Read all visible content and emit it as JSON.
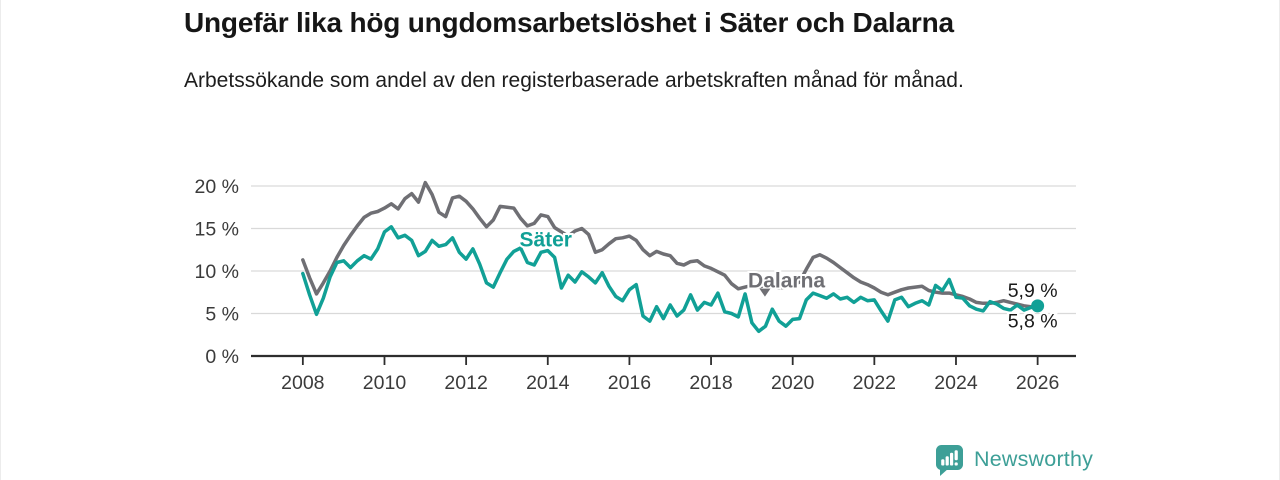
{
  "header": {
    "title": "Ungefär lika hög ungdomsarbetslöshet i Säter och Dalarna",
    "subtitle": "Arbetssökande som andel av den registerbaserade arbetskraften månad för månad."
  },
  "footer": {
    "brand": "Newsworthy"
  },
  "colors": {
    "sater": "#11a096",
    "dalarna": "#6f6f74",
    "grid": "#d9d9d9",
    "axis": "#2d2d2d",
    "tick_text": "#3b3b3b",
    "end_label_text": "#191919",
    "logo": "#3d9f97"
  },
  "chart_data": {
    "type": "line",
    "title": "Ungefär lika hög ungdomsarbetslöshet i Säter och Dalarna",
    "subtitle": "Arbetssökande som andel av den registerbaserade arbetskraften månad för månad.",
    "grid": "horizontal",
    "legend": "inline-labels",
    "x_domain": [
      2006.73,
      2026.94
    ],
    "y_domain": [
      0,
      21.88
    ],
    "x_start": 2008.0,
    "x_step": 0.1666667,
    "x_ticks": [
      2008,
      2010,
      2012,
      2014,
      2016,
      2018,
      2020,
      2022,
      2024,
      2026
    ],
    "x_tick_labels": [
      "2008",
      "2010",
      "2012",
      "2014",
      "2016",
      "2018",
      "2020",
      "2022",
      "2024",
      "2026"
    ],
    "y_ticks": [
      0,
      5,
      10,
      15,
      20
    ],
    "y_tick_labels": [
      "0 %",
      "5 %",
      "10 %",
      "15 %",
      "20 %"
    ],
    "series": [
      {
        "name": "Dalarna",
        "color": "#6f6f74",
        "end_label": "5,8 %",
        "end_dot": false,
        "values": [
          11.3,
          9.2,
          7.3,
          8.6,
          10.0,
          11.6,
          13.0,
          14.2,
          15.3,
          16.3,
          16.8,
          17.0,
          17.4,
          17.9,
          17.3,
          18.5,
          19.1,
          18.1,
          20.4,
          19.0,
          16.9,
          16.4,
          18.6,
          18.8,
          18.2,
          17.3,
          16.2,
          15.2,
          16.0,
          17.6,
          17.5,
          17.4,
          16.2,
          15.3,
          15.6,
          16.6,
          16.4,
          15.1,
          14.6,
          14.1,
          14.7,
          15.0,
          14.3,
          12.2,
          12.5,
          13.2,
          13.8,
          13.9,
          14.1,
          13.6,
          12.5,
          11.8,
          12.3,
          12.0,
          11.8,
          10.9,
          10.7,
          11.1,
          11.2,
          10.6,
          10.3,
          9.9,
          9.5,
          8.5,
          7.9,
          8.1,
          8.3,
          8.1,
          8.3,
          8.1,
          8.0,
          8.1,
          8.3,
          8.7,
          10.2,
          11.6,
          11.9,
          11.5,
          11.0,
          10.4,
          9.8,
          9.2,
          8.7,
          8.4,
          8.0,
          7.5,
          7.2,
          7.5,
          7.8,
          8.0,
          8.1,
          8.2,
          7.7,
          7.5,
          7.4,
          7.4,
          7.2,
          7.0,
          6.7,
          6.3,
          6.2,
          6.2,
          6.3,
          6.5,
          6.3,
          6.1,
          5.9,
          5.8,
          5.8
        ]
      },
      {
        "name": "Säter",
        "color": "#11a096",
        "end_label": "5,9 %",
        "end_dot": true,
        "values": [
          9.7,
          7.2,
          4.9,
          6.8,
          9.3,
          11.0,
          11.2,
          10.4,
          11.2,
          11.8,
          11.4,
          12.6,
          14.6,
          15.2,
          13.9,
          14.2,
          13.6,
          11.8,
          12.3,
          13.6,
          12.9,
          13.1,
          13.9,
          12.2,
          11.4,
          12.6,
          10.8,
          8.6,
          8.1,
          9.8,
          11.4,
          12.3,
          12.7,
          11.0,
          10.7,
          12.2,
          12.4,
          11.6,
          8.0,
          9.5,
          8.7,
          9.9,
          9.3,
          8.6,
          9.8,
          8.2,
          7.0,
          6.5,
          7.8,
          8.4,
          4.7,
          4.1,
          5.8,
          4.4,
          6.0,
          4.7,
          5.4,
          7.2,
          5.4,
          6.3,
          6.0,
          7.4,
          5.2,
          5.0,
          4.6,
          7.3,
          3.9,
          2.9,
          3.5,
          5.5,
          4.1,
          3.5,
          4.3,
          4.4,
          6.6,
          7.4,
          7.1,
          6.8,
          7.3,
          6.7,
          6.9,
          6.3,
          6.9,
          6.5,
          6.6,
          5.3,
          4.1,
          6.6,
          6.9,
          5.8,
          6.2,
          6.5,
          6.0,
          8.3,
          7.7,
          9.0,
          6.9,
          6.8,
          5.9,
          5.5,
          5.3,
          6.4,
          6.1,
          5.6,
          5.4,
          6.0,
          5.4,
          5.7,
          5.9
        ]
      }
    ],
    "annotations": [
      {
        "text": "Säter",
        "x": 2013.95,
        "y": 13.7,
        "color": "#11a096",
        "arrow": false
      },
      {
        "text": "Dalarna",
        "x": 2019.85,
        "y": 8.9,
        "color": "#6f6f74",
        "arrow": true,
        "arrow_x": 2019.32,
        "arrow_y": 7.45
      }
    ]
  }
}
